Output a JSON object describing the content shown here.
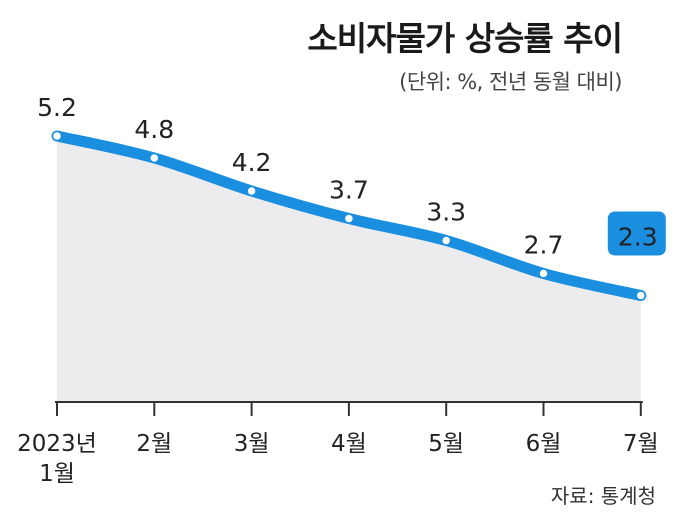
{
  "title": "소비자물가 상승률 추이",
  "unit_note": "(단위: %, 전년 동월 대비)",
  "source": "자료: 통계청",
  "colors": {
    "line": "#1a8fe0",
    "area": "#ececee",
    "icon": "#b4b4b4"
  },
  "icons": [
    "won-coin-icon",
    "won-coin-icon",
    "won-coin-icon"
  ],
  "icon_symbol": "₩",
  "chart_data": {
    "type": "area",
    "title": "소비자물가 상승률 추이",
    "subtitle": "(단위: %, 전년 동월 대비)",
    "x_tick_lines": [
      [
        "2023년",
        "1월"
      ],
      [
        "2월"
      ],
      [
        "3월"
      ],
      [
        "4월"
      ],
      [
        "5월"
      ],
      [
        "6월"
      ],
      [
        "7월"
      ]
    ],
    "x": [
      "2023년 1월",
      "2월",
      "3월",
      "4월",
      "5월",
      "6월",
      "7월"
    ],
    "values": [
      5.2,
      4.8,
      4.2,
      3.7,
      3.3,
      2.7,
      2.3
    ],
    "value_labels": [
      "5.2",
      "4.8",
      "4.2",
      "3.7",
      "3.3",
      "2.7",
      "2.3"
    ],
    "highlight_last": true,
    "grid": false,
    "legend": "none"
  }
}
